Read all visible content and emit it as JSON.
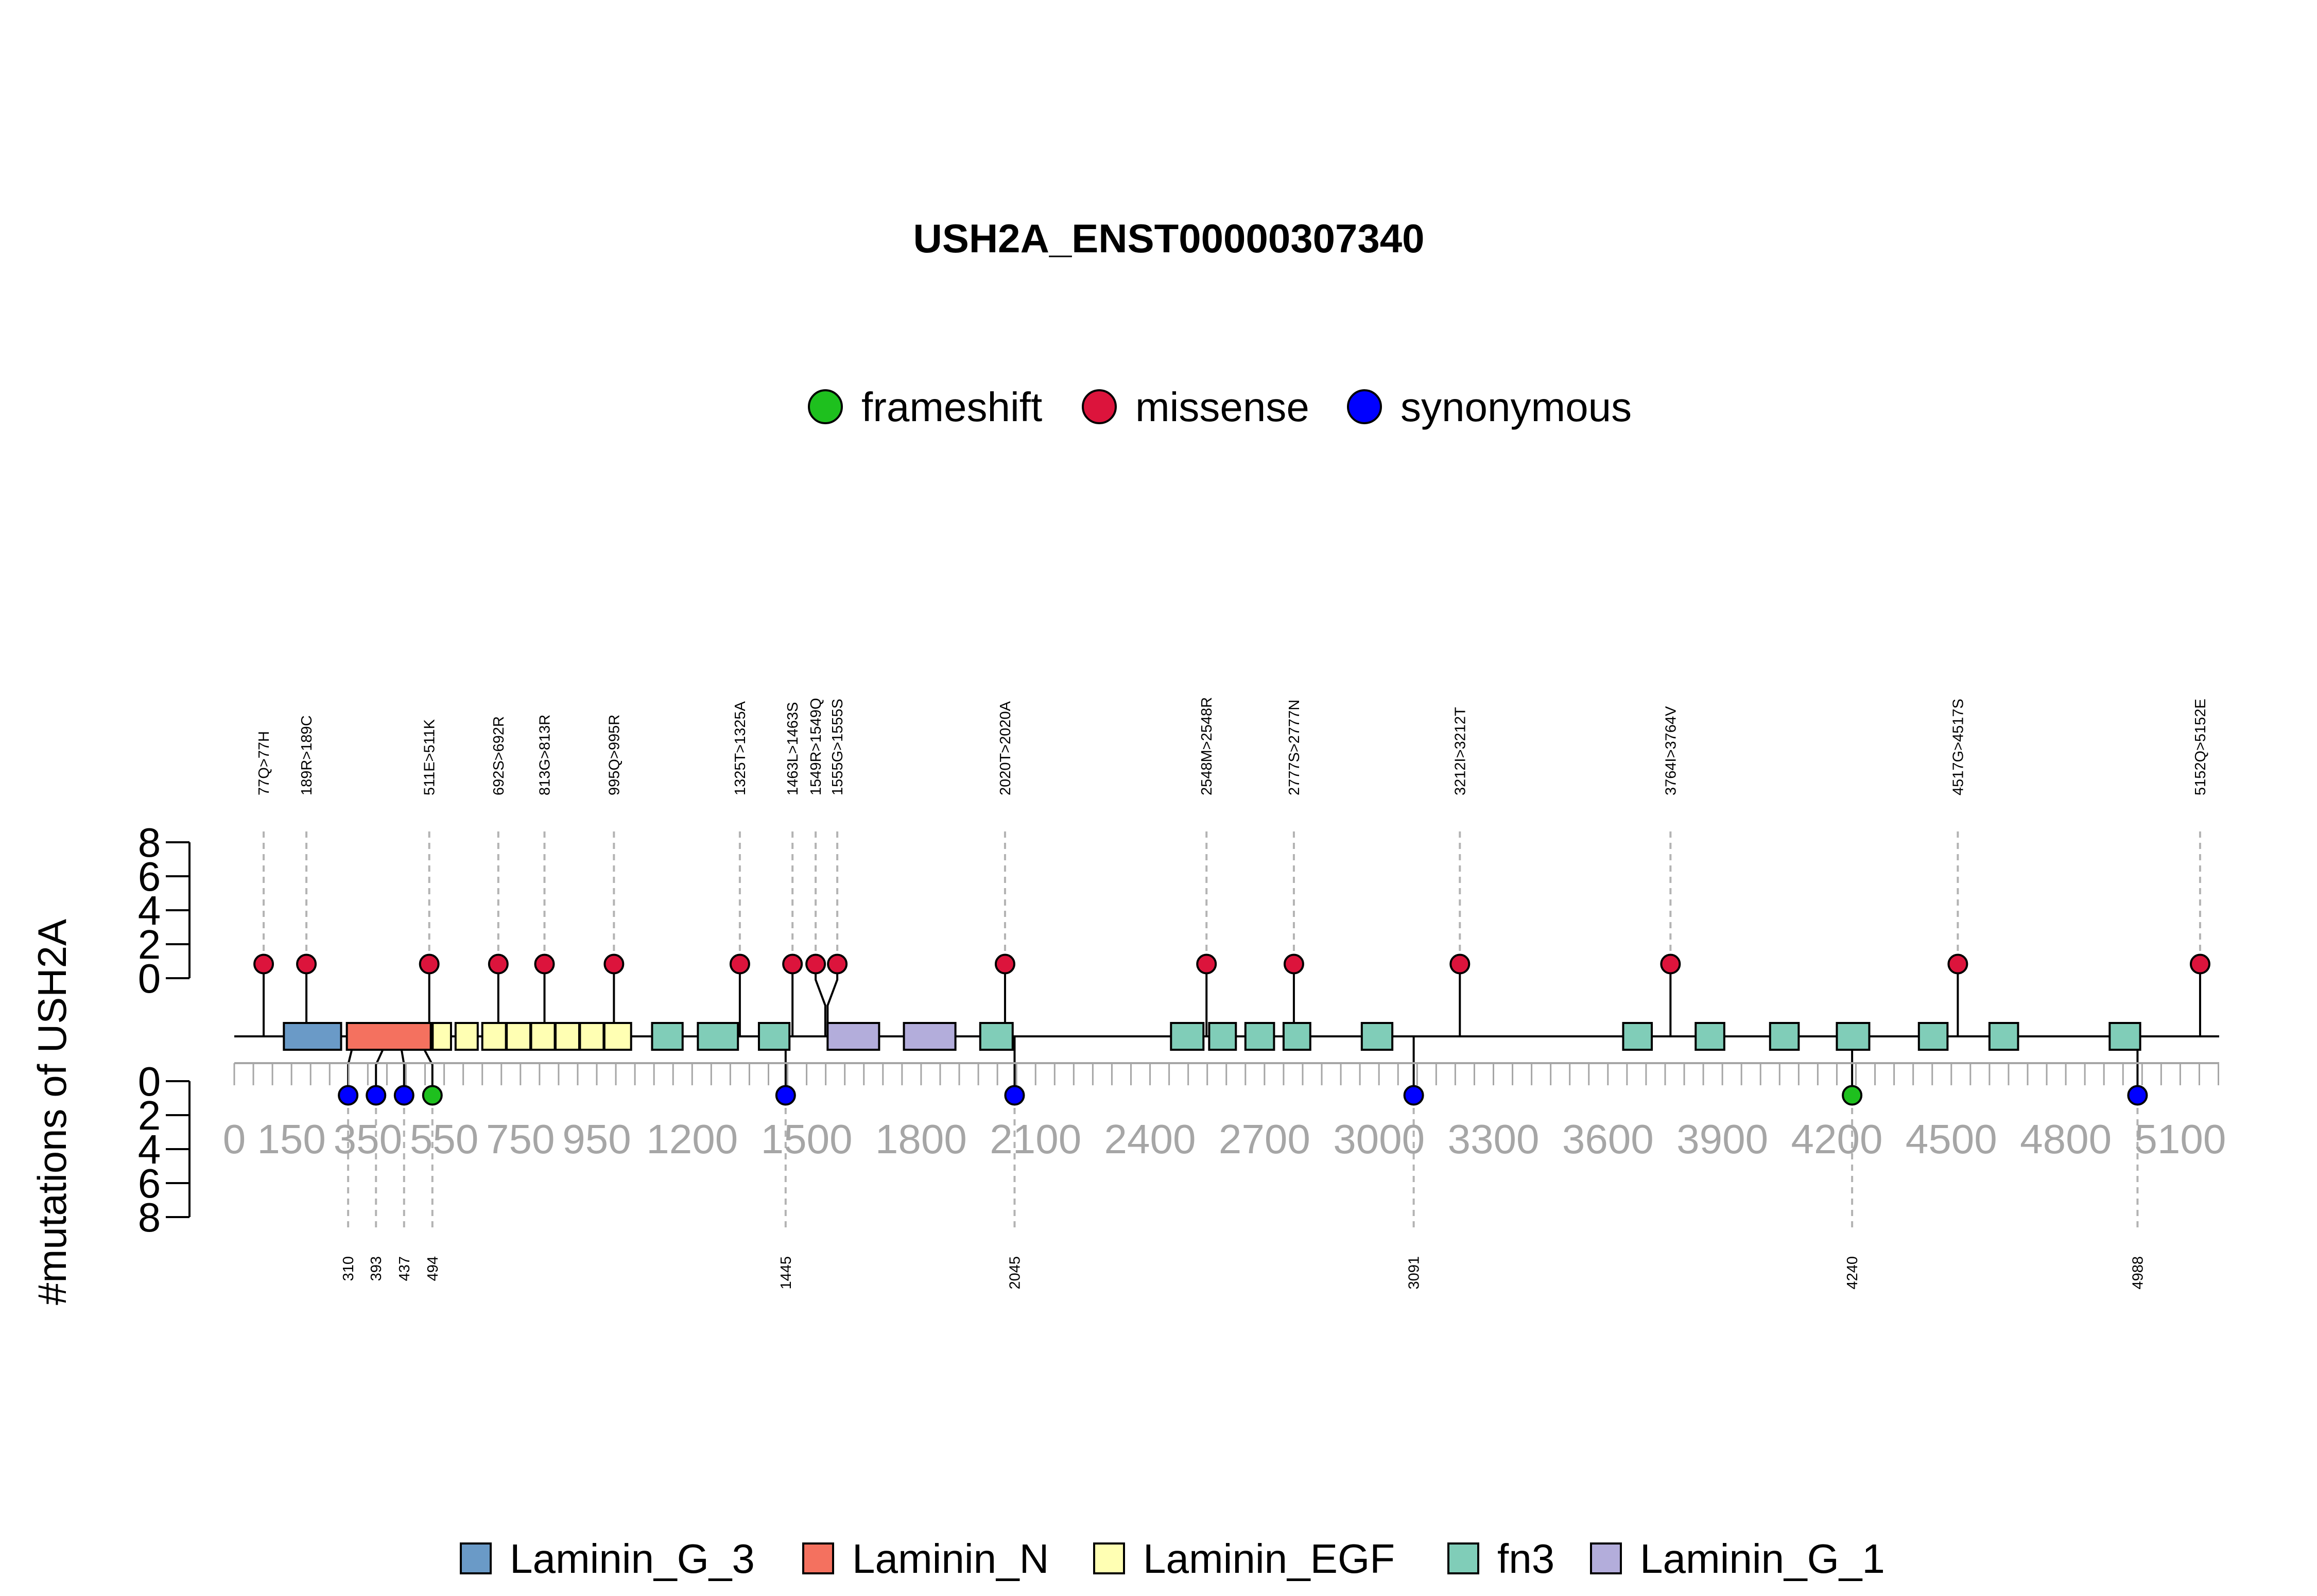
{
  "chart_data": {
    "type": "lollipop",
    "title": "USH2A_ENST00000307340",
    "ylabel": "#mutations of USH2A",
    "yticks": [
      "0",
      "2",
      "4",
      "6",
      "8"
    ],
    "x_ticks": [
      0,
      150,
      350,
      550,
      750,
      950,
      1200,
      1500,
      1800,
      2100,
      2400,
      2700,
      3000,
      3300,
      3600,
      3900,
      4200,
      4500,
      4800,
      5100
    ],
    "protein_length": 5202,
    "mutation_legend": [
      {
        "label": "frameshift",
        "color": "#1ec01e"
      },
      {
        "label": "missense",
        "color": "#dc143c"
      },
      {
        "label": "synonymous",
        "color": "#0000ff"
      }
    ],
    "domain_legend": [
      {
        "label": "Laminin_G_3",
        "color": "#6a9ac7"
      },
      {
        "label": "Laminin_N",
        "color": "#f4715f"
      },
      {
        "label": "Laminin_EGF",
        "color": "#ffffb3"
      },
      {
        "label": "fn3",
        "color": "#80cdb8"
      },
      {
        "label": "Laminin_G_1",
        "color": "#b3addb"
      }
    ],
    "domains": [
      {
        "name": "Laminin_G_3",
        "start": 130,
        "end": 280
      },
      {
        "name": "Laminin_N",
        "start": 295,
        "end": 515
      },
      {
        "name": "Laminin_EGF",
        "start": 520,
        "end": 568
      },
      {
        "name": "Laminin_EGF",
        "start": 580,
        "end": 638
      },
      {
        "name": "Laminin_EGF",
        "start": 650,
        "end": 712
      },
      {
        "name": "Laminin_EGF",
        "start": 714,
        "end": 776
      },
      {
        "name": "Laminin_EGF",
        "start": 778,
        "end": 840
      },
      {
        "name": "Laminin_EGF",
        "start": 842,
        "end": 904
      },
      {
        "name": "Laminin_EGF",
        "start": 906,
        "end": 968
      },
      {
        "name": "Laminin_EGF",
        "start": 970,
        "end": 1040
      },
      {
        "name": "fn3",
        "start": 1095,
        "end": 1175
      },
      {
        "name": "fn3",
        "start": 1215,
        "end": 1320
      },
      {
        "name": "fn3",
        "start": 1375,
        "end": 1455
      },
      {
        "name": "Laminin_G_1",
        "start": 1555,
        "end": 1690
      },
      {
        "name": "Laminin_G_1",
        "start": 1755,
        "end": 1890
      },
      {
        "name": "fn3",
        "start": 1955,
        "end": 2040
      },
      {
        "name": "fn3",
        "start": 2455,
        "end": 2540
      },
      {
        "name": "fn3",
        "start": 2555,
        "end": 2625
      },
      {
        "name": "fn3",
        "start": 2650,
        "end": 2725
      },
      {
        "name": "fn3",
        "start": 2750,
        "end": 2820
      },
      {
        "name": "fn3",
        "start": 2955,
        "end": 3035
      },
      {
        "name": "fn3",
        "start": 3640,
        "end": 3715
      },
      {
        "name": "fn3",
        "start": 3830,
        "end": 3905
      },
      {
        "name": "fn3",
        "start": 4025,
        "end": 4100
      },
      {
        "name": "fn3",
        "start": 4200,
        "end": 4285
      },
      {
        "name": "fn3",
        "start": 4415,
        "end": 4490
      },
      {
        "name": "fn3",
        "start": 4600,
        "end": 4675
      },
      {
        "name": "fn3",
        "start": 4915,
        "end": 4995
      }
    ],
    "mutations_top": [
      {
        "pos": 77,
        "label": "77Q>77H",
        "count": 1,
        "type": "missense"
      },
      {
        "pos": 189,
        "label": "189R>189C",
        "count": 1,
        "type": "missense"
      },
      {
        "pos": 511,
        "label": "511E>511K",
        "count": 1,
        "type": "missense"
      },
      {
        "pos": 692,
        "label": "692S>692R",
        "count": 1,
        "type": "missense"
      },
      {
        "pos": 813,
        "label": "813G>813R",
        "count": 1,
        "type": "missense"
      },
      {
        "pos": 995,
        "label": "995Q>995R",
        "count": 1,
        "type": "missense"
      },
      {
        "pos": 1325,
        "label": "1325T>1325A",
        "count": 1,
        "type": "missense"
      },
      {
        "pos": 1463,
        "label": "1463L>1463S",
        "count": 1,
        "type": "missense"
      },
      {
        "pos": 1549,
        "label": "1549R>1549Q",
        "count": 1,
        "type": "missense"
      },
      {
        "pos": 1555,
        "label": "1555G>1555S",
        "count": 1,
        "type": "missense"
      },
      {
        "pos": 2020,
        "label": "2020T>2020A",
        "count": 1,
        "type": "missense"
      },
      {
        "pos": 2548,
        "label": "2548M>2548R",
        "count": 1,
        "type": "missense"
      },
      {
        "pos": 2777,
        "label": "2777S>2777N",
        "count": 1,
        "type": "missense"
      },
      {
        "pos": 3212,
        "label": "3212I>3212T",
        "count": 1,
        "type": "missense"
      },
      {
        "pos": 3764,
        "label": "3764I>3764V",
        "count": 1,
        "type": "missense"
      },
      {
        "pos": 4517,
        "label": "4517G>4517S",
        "count": 1,
        "type": "missense"
      },
      {
        "pos": 5152,
        "label": "5152Q>5152E",
        "count": 1,
        "type": "missense"
      }
    ],
    "mutations_bottom": [
      {
        "pos": 310,
        "label": "310",
        "count": 1,
        "type": "synonymous"
      },
      {
        "pos": 393,
        "label": "393",
        "count": 1,
        "type": "synonymous"
      },
      {
        "pos": 437,
        "label": "437",
        "count": 1,
        "type": "synonymous"
      },
      {
        "pos": 494,
        "label": "494",
        "count": 1,
        "type": "frameshift"
      },
      {
        "pos": 1445,
        "label": "1445",
        "count": 1,
        "type": "synonymous"
      },
      {
        "pos": 2045,
        "label": "2045",
        "count": 1,
        "type": "synonymous"
      },
      {
        "pos": 3091,
        "label": "3091",
        "count": 1,
        "type": "synonymous"
      },
      {
        "pos": 4240,
        "label": "4240",
        "count": 1,
        "type": "frameshift"
      },
      {
        "pos": 4988,
        "label": "4988",
        "count": 1,
        "type": "synonymous"
      }
    ]
  }
}
